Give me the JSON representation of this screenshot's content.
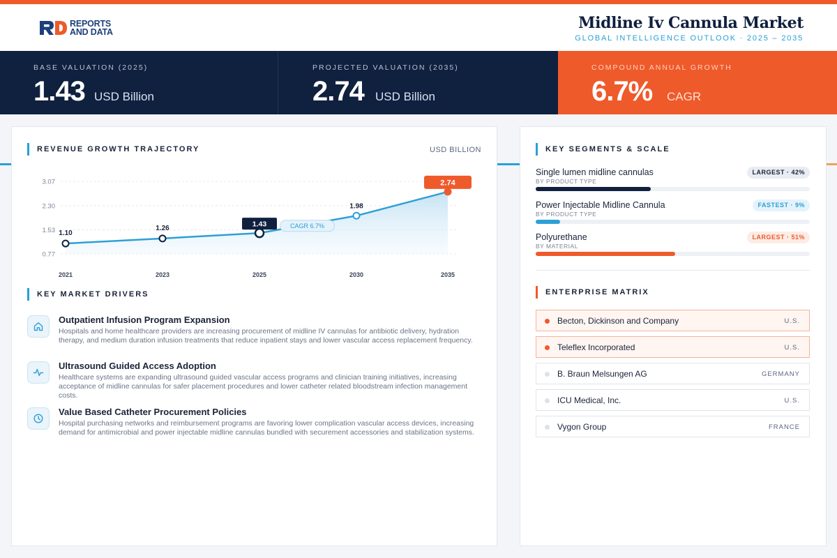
{
  "brand": {
    "line1": "REPORTS",
    "line2": "AND DATA"
  },
  "header": {
    "title": "Midline Iv Cannula Market",
    "subtitle": "GLOBAL INTELLIGENCE OUTLOOK · 2025 – 2035"
  },
  "kpis": [
    {
      "label": "BASE VALUATION (2025)",
      "value": "1.43",
      "unit": "USD Billion"
    },
    {
      "label": "PROJECTED VALUATION (2035)",
      "value": "2.74",
      "unit": "USD Billion"
    },
    {
      "label": "COMPOUND ANNUAL GROWTH",
      "value": "6.7%",
      "unit": "CAGR"
    }
  ],
  "chart_section": {
    "heading": "REVENUE GROWTH TRAJECTORY",
    "unit": "USD BILLION"
  },
  "chart_data": {
    "type": "line",
    "x": [
      "2021",
      "2023",
      "2025",
      "2030",
      "2035"
    ],
    "series": [
      {
        "values": [
          1.1,
          1.26,
          1.43,
          1.98,
          2.74
        ]
      }
    ],
    "point_labels": [
      "1.10",
      "1.26",
      "1.43",
      "1.98",
      "2.74"
    ],
    "y_ticks": [
      "0.77",
      "1.53",
      "2.30",
      "3.07"
    ],
    "ylim": [
      0.77,
      3.07
    ],
    "annotation": "CAGR 6.7%",
    "highlight_base_index": 2,
    "highlight_end_index": 4,
    "grid": true,
    "colors": {
      "line": "#2e9fd6",
      "base": "#10203f",
      "end": "#ef5a2b"
    }
  },
  "drivers_section": {
    "heading": "KEY MARKET DRIVERS",
    "items": [
      {
        "icon": "home-icon",
        "title": "Outpatient Infusion Program Expansion",
        "text": "Hospitals and home healthcare providers are increasing procurement of midline IV cannulas for antibiotic delivery, hydration therapy, and medium duration infusion treatments that reduce inpatient stays and lower vascular access replacement frequency."
      },
      {
        "icon": "pulse-icon",
        "title": "Ultrasound Guided Access Adoption",
        "text": "Healthcare systems are expanding ultrasound guided vascular access programs and clinician training initiatives, increasing acceptance of midline cannulas for safer placement procedures and lower catheter related bloodstream infection management costs."
      },
      {
        "icon": "clock-icon",
        "title": "Value Based Catheter Procurement Policies",
        "text": "Hospital purchasing networks and reimbursement programs are favoring lower complication vascular access devices, increasing demand for antimicrobial and power injectable midline cannulas bundled with securement accessories and stabilization systems."
      }
    ]
  },
  "segments_section": {
    "heading": "KEY SEGMENTS & SCALE",
    "items": [
      {
        "name": "Single lumen midline cannulas",
        "category": "BY PRODUCT TYPE",
        "badge": "LARGEST · 42%",
        "share": 0.42,
        "color": "#10203f",
        "badge_bg": "#e9ecf2",
        "badge_fg": "#1a2338"
      },
      {
        "name": "Power Injectable Midline Cannula",
        "category": "BY PRODUCT TYPE",
        "badge": "FASTEST · 9%",
        "share": 0.09,
        "color": "#2e9fd6",
        "badge_bg": "#e4f3fb",
        "badge_fg": "#2e9fd6"
      },
      {
        "name": "Polyurethane",
        "category": "BY MATERIAL",
        "badge": "LARGEST · 51%",
        "share": 0.51,
        "color": "#ef5a2b",
        "badge_bg": "#fdece5",
        "badge_fg": "#ef5a2b"
      }
    ]
  },
  "enterprise_section": {
    "heading": "ENTERPRISE MATRIX",
    "items": [
      {
        "name": "Becton, Dickinson and Company",
        "country": "U.S.",
        "highlight": true
      },
      {
        "name": "Teleflex Incorporated",
        "country": "U.S.",
        "highlight": true
      },
      {
        "name": "B. Braun Melsungen AG",
        "country": "GERMANY",
        "highlight": false
      },
      {
        "name": "ICU Medical, Inc.",
        "country": "U.S.",
        "highlight": false
      },
      {
        "name": "Vygon Group",
        "country": "FRANCE",
        "highlight": false
      }
    ]
  }
}
